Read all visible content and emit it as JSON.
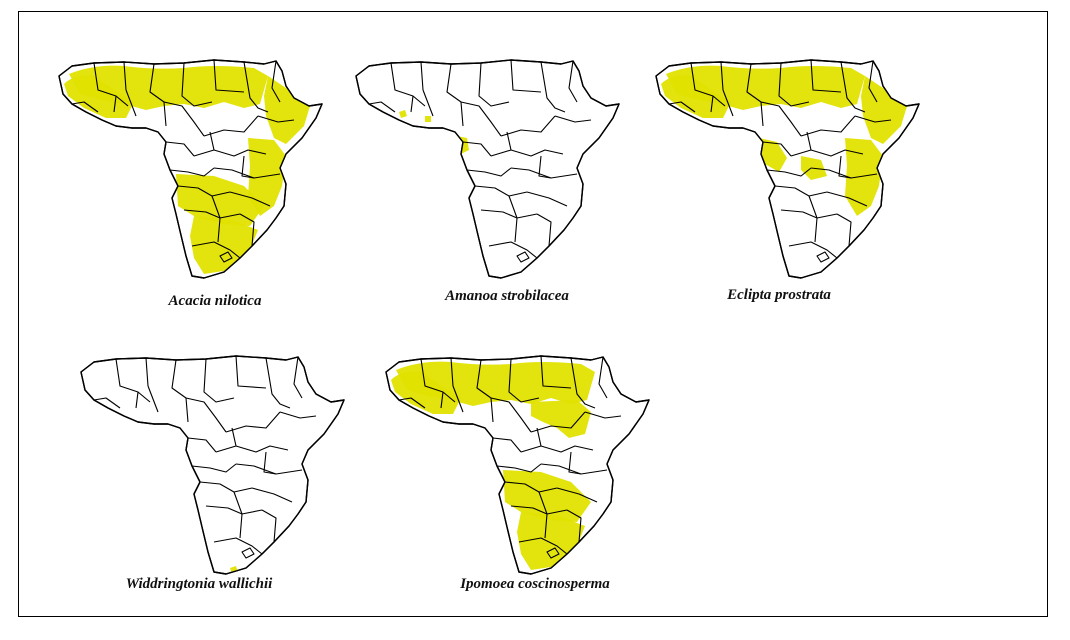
{
  "figure": {
    "highlight_color": "#e1e100",
    "outline_color": "#000000",
    "background": "#ffffff"
  },
  "panels": [
    {
      "id": "acacia",
      "label": "Acacia nilotica",
      "regions": [
        "sahel",
        "west-africa",
        "horn",
        "east-africa",
        "southern-central",
        "southern-africa"
      ]
    },
    {
      "id": "amanoa",
      "label": "Amanoa strobilacea",
      "regions": [
        "west-coast-spots",
        "gulf-of-guinea"
      ]
    },
    {
      "id": "eclipta",
      "label": "Eclipta prostrata",
      "regions": [
        "sahel",
        "west-africa",
        "horn",
        "east-africa",
        "central-patches"
      ]
    },
    {
      "id": "widdringtonia",
      "label": "Widdringtonia wallichii",
      "regions": [
        "cape"
      ]
    },
    {
      "id": "ipomoea",
      "label": "Ipomoea coscinosperma",
      "regions": [
        "sahel",
        "west-africa",
        "sudan",
        "southern-central",
        "southern-africa"
      ]
    }
  ]
}
